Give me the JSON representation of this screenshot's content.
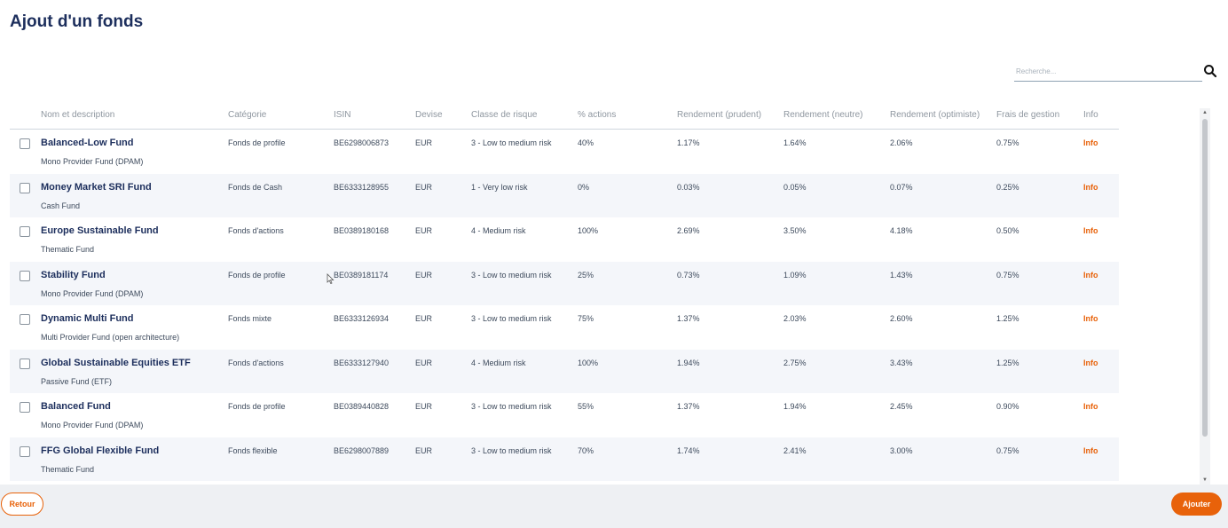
{
  "page": {
    "title": "Ajout d'un fonds"
  },
  "search": {
    "placeholder": "Recherche..."
  },
  "table": {
    "headers": [
      "Nom et description",
      "Catégorie",
      "ISIN",
      "Devise",
      "Classe de risque",
      "% actions",
      "Rendement (prudent)",
      "Rendement (neutre)",
      "Rendement (optimiste)",
      "Frais de gestion",
      "Info"
    ],
    "rows": [
      {
        "name": "Balanced-Low Fund",
        "description": "Mono Provider Fund (DPAM)",
        "category": "Fonds de profile",
        "isin": "BE6298006873",
        "currency": "EUR",
        "risk": "3 - Low to medium risk",
        "equity": "40%",
        "ret_prudent": "1.17%",
        "ret_neutral": "1.64%",
        "ret_optimistic": "2.06%",
        "fees": "0.75%",
        "info": "Info"
      },
      {
        "name": "Money Market SRI Fund",
        "description": "Cash Fund",
        "category": "Fonds de Cash",
        "isin": "BE6333128955",
        "currency": "EUR",
        "risk": "1 - Very low risk",
        "equity": "0%",
        "ret_prudent": "0.03%",
        "ret_neutral": "0.05%",
        "ret_optimistic": "0.07%",
        "fees": "0.25%",
        "info": "Info"
      },
      {
        "name": "Europe Sustainable Fund",
        "description": "Thematic Fund",
        "category": "Fonds d'actions",
        "isin": "BE0389180168",
        "currency": "EUR",
        "risk": "4 - Medium risk",
        "equity": "100%",
        "ret_prudent": "2.69%",
        "ret_neutral": "3.50%",
        "ret_optimistic": "4.18%",
        "fees": "0.50%",
        "info": "Info"
      },
      {
        "name": "Stability Fund",
        "description": "Mono Provider Fund (DPAM)",
        "category": "Fonds de profile",
        "isin": "BE0389181174",
        "currency": "EUR",
        "risk": "3 - Low to medium risk",
        "equity": "25%",
        "ret_prudent": "0.73%",
        "ret_neutral": "1.09%",
        "ret_optimistic": "1.43%",
        "fees": "0.75%",
        "info": "Info"
      },
      {
        "name": "Dynamic Multi Fund",
        "description": "Multi Provider Fund (open architecture)",
        "category": "Fonds mixte",
        "isin": "BE6333126934",
        "currency": "EUR",
        "risk": "3 - Low to medium risk",
        "equity": "75%",
        "ret_prudent": "1.37%",
        "ret_neutral": "2.03%",
        "ret_optimistic": "2.60%",
        "fees": "1.25%",
        "info": "Info"
      },
      {
        "name": "Global Sustainable Equities ETF",
        "description": "Passive Fund (ETF)",
        "category": "Fonds d'actions",
        "isin": "BE6333127940",
        "currency": "EUR",
        "risk": "4 - Medium risk",
        "equity": "100%",
        "ret_prudent": "1.94%",
        "ret_neutral": "2.75%",
        "ret_optimistic": "3.43%",
        "fees": "1.25%",
        "info": "Info"
      },
      {
        "name": "Balanced Fund",
        "description": "Mono Provider Fund (DPAM)",
        "category": "Fonds de profile",
        "isin": "BE0389440828",
        "currency": "EUR",
        "risk": "3 - Low to medium risk",
        "equity": "55%",
        "ret_prudent": "1.37%",
        "ret_neutral": "1.94%",
        "ret_optimistic": "2.45%",
        "fees": "0.90%",
        "info": "Info"
      },
      {
        "name": "FFG Global Flexible Fund",
        "description": "Thematic Fund",
        "category": "Fonds flexible",
        "isin": "BE6298007889",
        "currency": "EUR",
        "risk": "3 - Low to medium risk",
        "equity": "70%",
        "ret_prudent": "1.74%",
        "ret_neutral": "2.41%",
        "ret_optimistic": "3.00%",
        "fees": "0.75%",
        "info": "Info"
      }
    ]
  },
  "footer": {
    "back_label": "Retour",
    "add_label": "Ajouter"
  },
  "colors": {
    "accent": "#e8620a",
    "title": "#1c2e5c",
    "row_alt": "#f4f6fa"
  }
}
